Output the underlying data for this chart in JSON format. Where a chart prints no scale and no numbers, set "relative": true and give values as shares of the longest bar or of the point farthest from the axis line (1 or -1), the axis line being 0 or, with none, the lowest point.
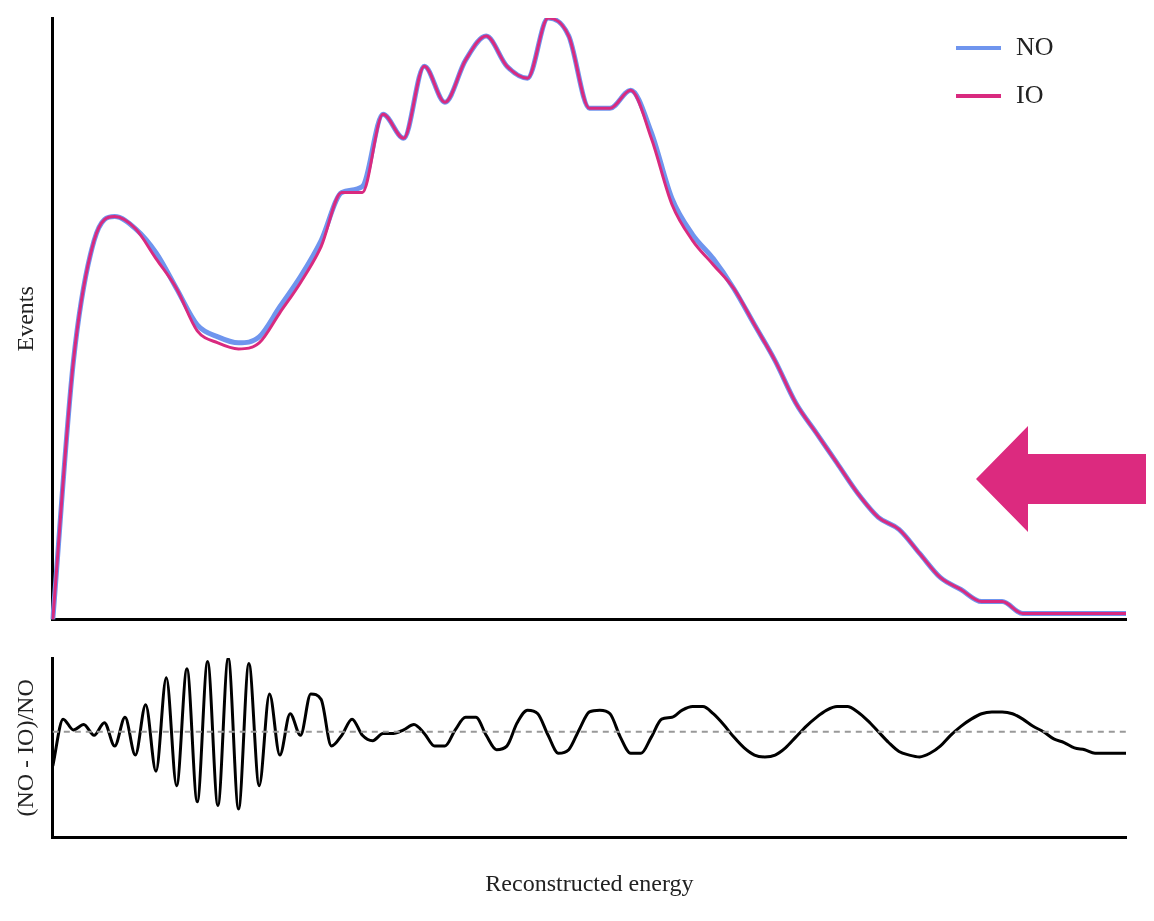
{
  "chart_data": [
    {
      "type": "line",
      "relative": true,
      "ylabel": "Events",
      "legend": "top right",
      "grid": false,
      "marker": "none",
      "categories": [
        null,
        null,
        null,
        null,
        null,
        null,
        null,
        null,
        null,
        null,
        null,
        null,
        null,
        null,
        null,
        null,
        null,
        null,
        null,
        null,
        null,
        null,
        null,
        null,
        null,
        null,
        null,
        null,
        null,
        null,
        null,
        null,
        null,
        null,
        null,
        null,
        null,
        null,
        null,
        null,
        null,
        null,
        null,
        null,
        null,
        null,
        null,
        null,
        null,
        null,
        null,
        null,
        null
      ],
      "series": [
        {
          "name": "NO",
          "color": "#6f95ee",
          "values": [
            0,
            0.43,
            0.63,
            0.67,
            0.65,
            0.61,
            0.55,
            0.49,
            0.47,
            0.46,
            0.47,
            0.52,
            0.57,
            0.63,
            0.71,
            0.72,
            0.84,
            0.8,
            0.92,
            0.86,
            0.93,
            0.97,
            0.92,
            0.9,
            1,
            0.97,
            0.85,
            0.85,
            0.88,
            0.81,
            0.7,
            0.64,
            0.6,
            0.55,
            0.49,
            0.43,
            0.36,
            0.31,
            0.26,
            0.21,
            0.17,
            0.15,
            0.11,
            0.07,
            0.05,
            0.03,
            0.03,
            0.01,
            0.01,
            0.01,
            0.01,
            0.01,
            0.01
          ]
        },
        {
          "name": "IO",
          "color": "#d92a7f",
          "values": [
            0,
            0.43,
            0.63,
            0.67,
            0.65,
            0.6,
            0.55,
            0.48,
            0.46,
            0.45,
            0.46,
            0.51,
            0.56,
            0.62,
            0.71,
            0.71,
            0.84,
            0.8,
            0.92,
            0.86,
            0.93,
            0.97,
            0.92,
            0.9,
            1,
            0.97,
            0.85,
            0.85,
            0.88,
            0.8,
            0.69,
            0.63,
            0.59,
            0.55,
            0.49,
            0.43,
            0.36,
            0.31,
            0.26,
            0.21,
            0.17,
            0.15,
            0.11,
            0.07,
            0.05,
            0.03,
            0.03,
            0.01,
            0.01,
            0.01,
            0.01,
            0.01,
            0.01
          ]
        }
      ]
    },
    {
      "type": "line",
      "relative": true,
      "ylabel": "(NO - IO)/NO",
      "xlabel": "Reconstructed energy",
      "legend": false,
      "grid": false,
      "marker": "none",
      "categories": [
        null,
        null,
        null,
        null,
        null,
        null,
        null,
        null,
        null,
        null,
        null,
        null,
        null,
        null,
        null,
        null,
        null,
        null,
        null,
        null,
        null,
        null,
        null,
        null,
        null,
        null,
        null,
        null,
        null,
        null,
        null,
        null,
        null,
        null,
        null,
        null,
        null,
        null,
        null,
        null,
        null,
        null,
        null,
        null,
        null,
        null,
        null,
        null,
        null,
        null,
        null,
        null,
        null,
        null,
        null,
        null,
        null,
        null,
        null,
        null,
        null,
        null,
        null,
        null,
        null,
        null,
        null,
        null,
        null,
        null,
        null,
        null,
        null,
        null,
        null,
        null,
        null,
        null,
        null,
        null,
        null,
        null,
        null,
        null,
        null,
        null,
        null,
        null,
        null,
        null,
        null,
        null,
        null,
        null,
        null,
        null,
        null,
        null,
        null,
        null,
        null,
        null,
        null,
        null,
        null
      ],
      "series": [
        {
          "color": "#000000",
          "values": [
            0.4,
            0.66,
            0.6,
            0.63,
            0.57,
            0.64,
            0.51,
            0.67,
            0.46,
            0.74,
            0.37,
            0.89,
            0.29,
            0.94,
            0.2,
            0.98,
            0.18,
            1,
            0.16,
            0.97,
            0.29,
            0.8,
            0.46,
            0.69,
            0.57,
            0.8,
            0.77,
            0.51,
            0.57,
            0.66,
            0.57,
            0.54,
            0.58,
            0.58,
            0.6,
            0.63,
            0.58,
            0.51,
            0.51,
            0.6,
            0.67,
            0.67,
            0.57,
            0.49,
            0.51,
            0.64,
            0.71,
            0.69,
            0.57,
            0.47,
            0.49,
            0.6,
            0.7,
            0.71,
            0.69,
            0.56,
            0.47,
            0.47,
            0.56,
            0.66,
            0.67,
            0.71,
            0.73,
            0.73,
            0.69,
            0.63,
            0.56,
            0.5,
            0.46,
            0.45,
            0.46,
            0.5,
            0.56,
            0.62,
            0.67,
            0.71,
            0.73,
            0.73,
            0.7,
            0.65,
            0.59,
            0.53,
            0.48,
            0.46,
            0.45,
            0.47,
            0.51,
            0.57,
            0.62,
            0.66,
            0.69,
            0.7,
            0.7,
            0.69,
            0.66,
            0.62,
            0.59,
            0.55,
            0.53,
            0.5,
            0.49,
            0.47,
            0.47,
            0.47,
            0.47
          ]
        }
      ],
      "ref_lines": [
        {
          "axis": "y",
          "value": 0.59,
          "color": "#999999",
          "line_style": "dashed"
        }
      ]
    }
  ]
}
